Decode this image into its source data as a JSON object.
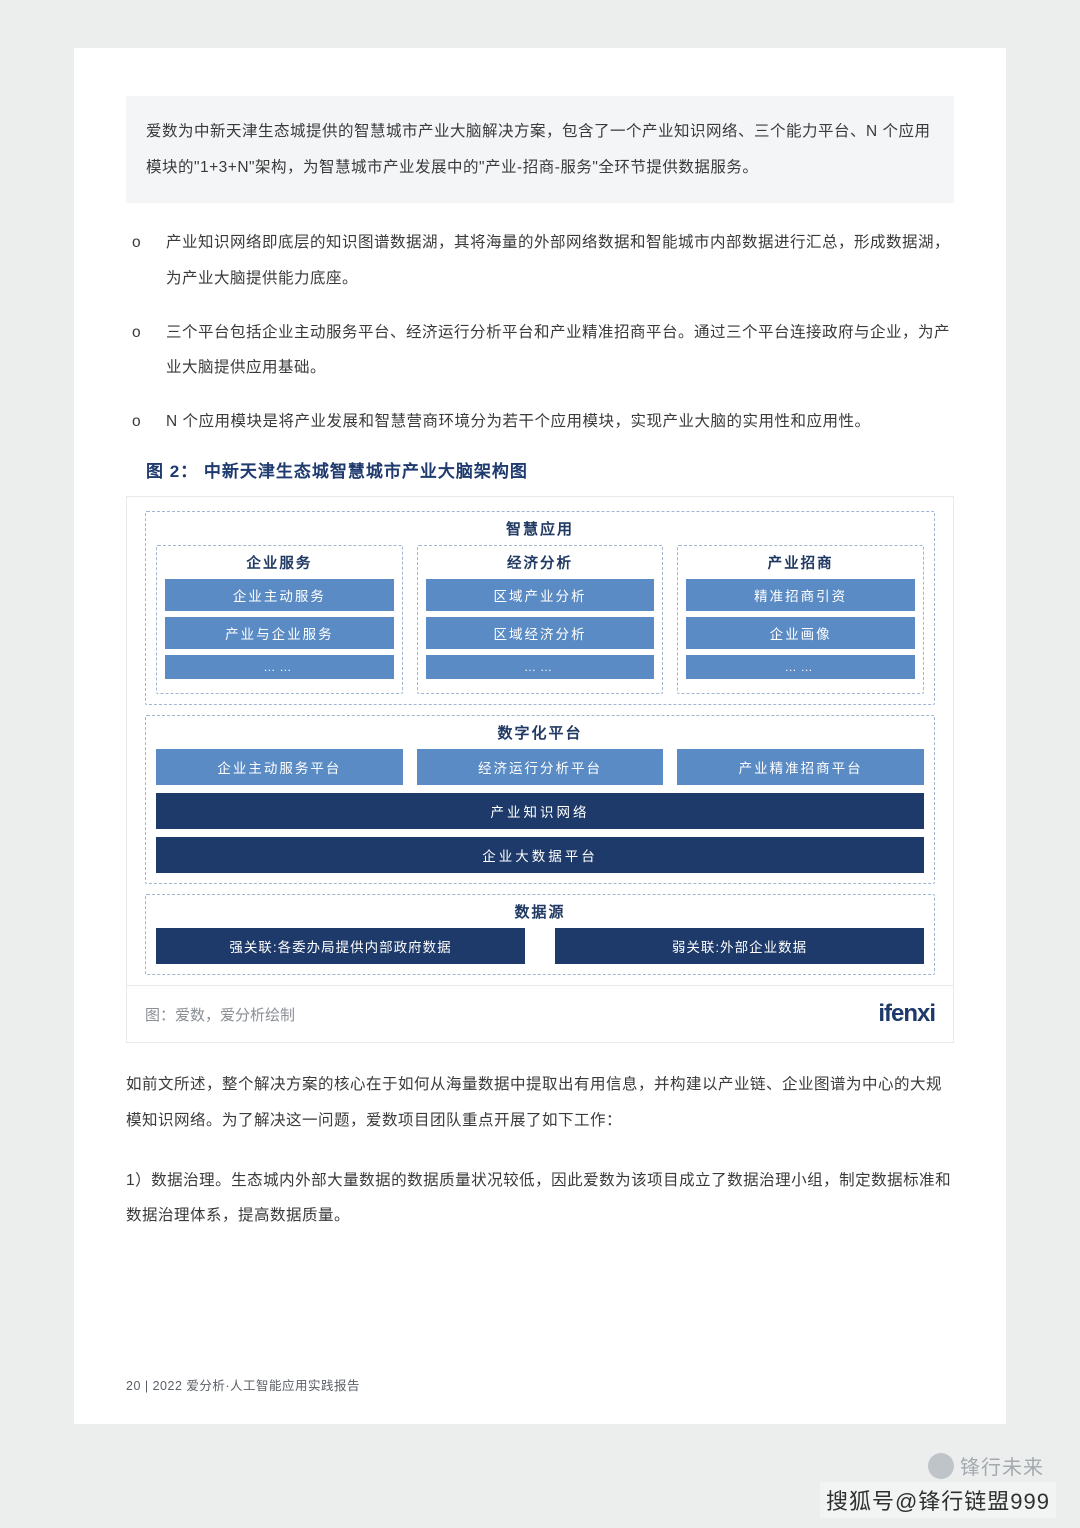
{
  "intro": "爱数为中新天津生态城提供的智慧城市产业大脑解决方案，包含了一个产业知识网络、三个能力平台、N 个应用模块的\"1+3+N\"架构，为智慧城市产业发展中的\"产业-招商-服务\"全环节提供数据服务。",
  "bullets": {
    "marker": "o",
    "b1": "产业知识网络即底层的知识图谱数据湖，其将海量的外部网络数据和智能城市内部数据进行汇总，形成数据湖，为产业大脑提供能力底座。",
    "b2": "三个平台包括企业主动服务平台、经济运行分析平台和产业精准招商平台。通过三个平台连接政府与企业，为产业大脑提供应用基础。",
    "b3": "N 个应用模块是将产业发展和智慧营商环境分为若干个应用模块，实现产业大脑的实用性和应用性。"
  },
  "figure": {
    "title": "图 2：  中新天津生态城智慧城市产业大脑架构图",
    "type": "infographic",
    "colors": {
      "light_box": "#5a8bc4",
      "dark_box": "#1d3a6a",
      "dash_border": "#9fb5d3",
      "title_text": "#213a63",
      "footer_text": "#8a8f95",
      "brand_text": "#1d3a6a",
      "page_bg": "#ffffff"
    },
    "sections": {
      "apps": {
        "title": "智慧应用",
        "cols": [
          {
            "title": "企业服务",
            "items": [
              "企业主动服务",
              "产业与企业服务",
              "……"
            ]
          },
          {
            "title": "经济分析",
            "items": [
              "区域产业分析",
              "区域经济分析",
              "……"
            ]
          },
          {
            "title": "产业招商",
            "items": [
              "精准招商引资",
              "企业画像",
              "……"
            ]
          }
        ]
      },
      "platform": {
        "title": "数字化平台",
        "row": [
          "企业主动服务平台",
          "经济运行分析平台",
          "产业精准招商平台"
        ],
        "bars": [
          "产业知识网络",
          "企业大数据平台"
        ]
      },
      "source": {
        "title": "数据源",
        "items": [
          "强关联:各委办局提供内部政府数据",
          "弱关联:外部企业数据"
        ]
      }
    },
    "footer_label": "图：爱数，爱分析绘制",
    "brand": "ifenxi"
  },
  "para1": "如前文所述，整个解决方案的核心在于如何从海量数据中提取出有用信息，并构建以产业链、企业图谱为中心的大规模知识网络。为了解决这一问题，爱数项目团队重点开展了如下工作：",
  "para2": "1）数据治理。生态城内外部大量数据的数据质量状况较低，因此爱数为该项目成立了数据治理小组，制定数据标准和数据治理体系，提高数据质量。",
  "footer": "20  |  2022 爱分析·人工智能应用实践报告",
  "watermark1": "锋行未来",
  "watermark2": "搜狐号@锋行链盟999"
}
